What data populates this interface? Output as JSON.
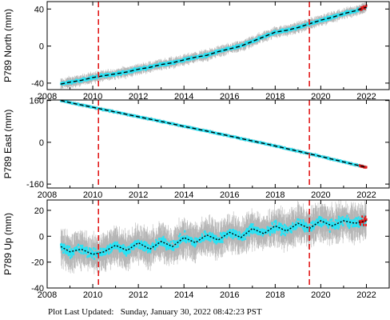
{
  "footer": {
    "label": "Plot Last Updated:",
    "timestamp": "Sunday, January 30, 2022 08:42:23 PST"
  },
  "colors": {
    "data": "#27e3f5",
    "error_bar": "#b5b5b5",
    "model": "#000000",
    "event_line": "#e21b1b",
    "recent": "#e21b1b"
  },
  "chart_data": [
    {
      "type": "scatter",
      "ylabel": "P789 North (mm)",
      "xlim": [
        2008.0,
        2023.0
      ],
      "ylim": [
        -47,
        48
      ],
      "yticks": [
        -40,
        0,
        40
      ],
      "xticks": [
        2008,
        2010,
        2012,
        2014,
        2016,
        2018,
        2020,
        2022
      ],
      "event_lines": [
        2010.25,
        2019.5
      ],
      "series": [
        {
          "values": [
            [
              2008.6,
              -41
            ],
            [
              2009.0,
              -39
            ],
            [
              2009.5,
              -37
            ],
            [
              2010.0,
              -34
            ],
            [
              2010.5,
              -32
            ],
            [
              2011.0,
              -30
            ],
            [
              2011.5,
              -28
            ],
            [
              2012.0,
              -25
            ],
            [
              2012.5,
              -23
            ],
            [
              2013.0,
              -20
            ],
            [
              2013.5,
              -18
            ],
            [
              2014.0,
              -15
            ],
            [
              2014.5,
              -12
            ],
            [
              2015.0,
              -10
            ],
            [
              2015.5,
              -6
            ],
            [
              2016.0,
              -3
            ],
            [
              2016.5,
              0
            ],
            [
              2017.0,
              5
            ],
            [
              2017.5,
              10
            ],
            [
              2018.0,
              15
            ],
            [
              2018.5,
              17
            ],
            [
              2019.0,
              20
            ],
            [
              2019.5,
              24
            ],
            [
              2020.0,
              28
            ],
            [
              2020.5,
              31
            ],
            [
              2021.0,
              35
            ],
            [
              2021.5,
              38
            ],
            [
              2022.0,
              42
            ]
          ]
        }
      ]
    },
    {
      "type": "scatter",
      "ylabel": "P789 East (mm)",
      "xlim": [
        2008.0,
        2023.0
      ],
      "ylim": [
        -175,
        162
      ],
      "yticks": [
        -160,
        0,
        160
      ],
      "xticks": [
        2008,
        2010,
        2012,
        2014,
        2016,
        2018,
        2020,
        2022
      ],
      "event_lines": [
        2010.25,
        2019.5
      ],
      "series": [
        {
          "values": [
            [
              2008.6,
              160
            ],
            [
              2009.0,
              152
            ],
            [
              2010.0,
              134
            ],
            [
              2011.0,
              116
            ],
            [
              2012.0,
              98
            ],
            [
              2013.0,
              80
            ],
            [
              2014.0,
              61
            ],
            [
              2015.0,
              43
            ],
            [
              2016.0,
              24
            ],
            [
              2017.0,
              5
            ],
            [
              2018.0,
              -14
            ],
            [
              2019.0,
              -34
            ],
            [
              2020.0,
              -54
            ],
            [
              2021.0,
              -75
            ],
            [
              2022.0,
              -96
            ]
          ]
        }
      ]
    },
    {
      "type": "scatter",
      "ylabel": "P789 Up (mm)",
      "xlim": [
        2008.0,
        2023.0
      ],
      "ylim": [
        -40,
        28
      ],
      "yticks": [
        -40,
        -20,
        0,
        20
      ],
      "xticks": [
        2008,
        2010,
        2012,
        2014,
        2016,
        2018,
        2020,
        2022
      ],
      "event_lines": [
        2010.25,
        2019.5
      ],
      "series": [
        {
          "values": [
            [
              2008.6,
              -8
            ],
            [
              2009.0,
              -12
            ],
            [
              2009.5,
              -10
            ],
            [
              2010.0,
              -14
            ],
            [
              2010.5,
              -12
            ],
            [
              2011.0,
              -7
            ],
            [
              2011.5,
              -11
            ],
            [
              2012.0,
              -5
            ],
            [
              2012.5,
              -10
            ],
            [
              2013.0,
              -4
            ],
            [
              2013.5,
              -8
            ],
            [
              2014.0,
              -1
            ],
            [
              2014.5,
              -5
            ],
            [
              2015.0,
              1
            ],
            [
              2015.5,
              -3
            ],
            [
              2016.0,
              3
            ],
            [
              2016.5,
              -1
            ],
            [
              2017.0,
              6
            ],
            [
              2017.5,
              2
            ],
            [
              2018.0,
              8
            ],
            [
              2018.5,
              4
            ],
            [
              2019.0,
              10
            ],
            [
              2019.5,
              6
            ],
            [
              2020.0,
              12
            ],
            [
              2020.5,
              8
            ],
            [
              2021.0,
              12
            ],
            [
              2021.5,
              10
            ],
            [
              2022.0,
              12
            ]
          ]
        }
      ]
    }
  ]
}
